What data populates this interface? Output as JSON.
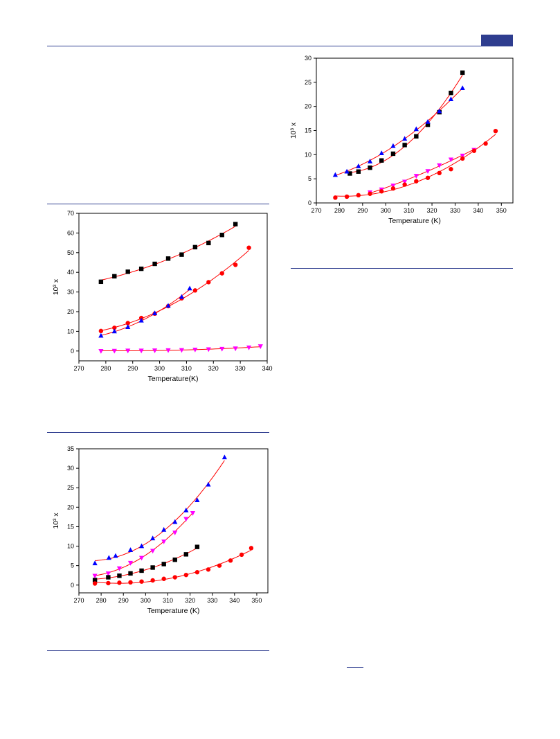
{
  "header": {
    "accent_color": "#2e3d8f"
  },
  "footer": {
    "short_rule_color": "#2e3d8f"
  },
  "colors": {
    "fit_line": "#ff0000",
    "black": "#000000",
    "red": "#ff0000",
    "blue": "#0000ff",
    "magenta": "#ff00ff"
  },
  "chart_data": [
    {
      "type": "scatter",
      "title": "",
      "xlabel": "Temperature(K)",
      "ylabel": "10³ x",
      "xlim": [
        270,
        340
      ],
      "ylim": [
        -5,
        70
      ],
      "xticks": [
        270,
        280,
        290,
        300,
        310,
        320,
        330,
        340
      ],
      "yticks": [
        0,
        10,
        20,
        30,
        40,
        50,
        60,
        70
      ],
      "grid": false,
      "series": [
        {
          "marker": "square",
          "color": "#000000",
          "x": [
            278.2,
            283.2,
            288.2,
            293.2,
            298.2,
            303.2,
            308.2,
            313.2,
            318.2,
            323.2,
            328.2
          ],
          "y": [
            35.2,
            38.0,
            40.3,
            41.8,
            44.3,
            47.0,
            49.0,
            52.8,
            54.9,
            59.0,
            64.5
          ]
        },
        {
          "marker": "circle",
          "color": "#ff0000",
          "x": [
            278.2,
            283.2,
            288.2,
            293.2,
            298.2,
            303.2,
            308.2,
            313.2,
            318.2,
            323.2,
            328.2,
            333.2
          ],
          "y": [
            10.2,
            11.8,
            14.2,
            16.8,
            19.0,
            22.8,
            26.8,
            30.8,
            35.0,
            39.5,
            43.8,
            52.5
          ]
        },
        {
          "marker": "triangle-up",
          "color": "#0000ff",
          "x": [
            278.2,
            283.2,
            288.2,
            293.2,
            298.2,
            303.2,
            308.2,
            311.2
          ],
          "y": [
            7.8,
            10.0,
            12.2,
            15.5,
            19.2,
            23.0,
            27.5,
            31.8
          ]
        },
        {
          "marker": "triangle-down",
          "color": "#ff00ff",
          "x": [
            278.2,
            283.2,
            288.2,
            293.2,
            298.2,
            303.2,
            308.2,
            313.2,
            318.2,
            323.2,
            328.2,
            333.2,
            337.5
          ],
          "y": [
            0.0,
            0.1,
            0.2,
            0.2,
            0.3,
            0.4,
            0.5,
            0.7,
            0.9,
            1.1,
            1.3,
            1.8,
            2.4
          ]
        }
      ]
    },
    {
      "type": "scatter",
      "title": "",
      "xlabel": "Temperature (K)",
      "ylabel": "10³ x",
      "xlim": [
        270,
        355
      ],
      "ylim": [
        -2,
        35
      ],
      "xticks": [
        270,
        280,
        290,
        300,
        310,
        320,
        330,
        340,
        350
      ],
      "yticks": [
        0,
        5,
        10,
        15,
        20,
        25,
        30,
        35
      ],
      "grid": false,
      "series": [
        {
          "marker": "triangle-up",
          "color": "#0000ff",
          "x": [
            277.2,
            283.5,
            286.5,
            293.2,
            298.2,
            303.2,
            308.2,
            313.2,
            318.2,
            323.2,
            328.2,
            335.5
          ],
          "y": [
            5.6,
            7.0,
            7.5,
            9.0,
            10.0,
            12.0,
            14.2,
            16.2,
            19.2,
            21.8,
            25.8,
            32.8
          ]
        },
        {
          "marker": "triangle-down",
          "color": "#ff00ff",
          "x": [
            277.2,
            283.2,
            288.2,
            293.2,
            298.2,
            303.2,
            308.2,
            313.2,
            318.2,
            321.2
          ],
          "y": [
            2.4,
            3.0,
            4.3,
            5.7,
            7.0,
            8.8,
            11.2,
            13.5,
            17.0,
            18.5
          ]
        },
        {
          "marker": "square",
          "color": "#000000",
          "x": [
            277.2,
            283.2,
            288.2,
            293.2,
            298.2,
            303.2,
            308.2,
            313.2,
            318.2,
            323.2
          ],
          "y": [
            1.3,
            2.0,
            2.4,
            3.0,
            3.7,
            4.5,
            5.4,
            6.5,
            7.9,
            9.8
          ]
        },
        {
          "marker": "circle",
          "color": "#ff0000",
          "x": [
            277.2,
            283.2,
            288.2,
            293.2,
            298.2,
            303.2,
            308.2,
            313.2,
            318.2,
            323.2,
            328.2,
            333.2,
            338.2,
            343.2,
            347.5
          ],
          "y": [
            0.4,
            0.5,
            0.6,
            0.7,
            0.9,
            1.2,
            1.6,
            2.0,
            2.6,
            3.3,
            4.0,
            5.0,
            6.3,
            7.8,
            9.5
          ]
        }
      ]
    },
    {
      "type": "scatter",
      "title": "",
      "xlabel": "Temperature (K)",
      "ylabel": "10³ x",
      "xlim": [
        270,
        355
      ],
      "ylim": [
        0,
        30
      ],
      "xticks": [
        270,
        280,
        290,
        300,
        310,
        320,
        330,
        340,
        350
      ],
      "yticks": [
        0,
        5,
        10,
        15,
        20,
        25,
        30
      ],
      "grid": false,
      "series": [
        {
          "marker": "square",
          "color": "#000000",
          "x": [
            284.5,
            288.2,
            293.2,
            298.2,
            303.2,
            308.2,
            313.2,
            318.2,
            323.2,
            328.2,
            333.2
          ],
          "y": [
            6.1,
            6.5,
            7.3,
            8.8,
            10.2,
            12.0,
            13.8,
            16.2,
            18.8,
            22.8,
            27.0
          ]
        },
        {
          "marker": "triangle-up",
          "color": "#0000ff",
          "x": [
            278.2,
            283.2,
            288.2,
            293.2,
            298.2,
            303.2,
            308.2,
            313.2,
            318.2,
            323.2,
            328.2,
            333.2
          ],
          "y": [
            5.8,
            6.5,
            7.6,
            8.6,
            10.3,
            11.8,
            13.3,
            15.3,
            16.8,
            19.0,
            21.5,
            23.8
          ]
        },
        {
          "marker": "triangle-down",
          "color": "#ff00ff",
          "x": [
            293.2,
            298.2,
            303.2,
            308.2,
            313.2,
            318.2,
            323.2,
            328.2,
            333.2,
            338.2
          ],
          "y": [
            2.2,
            2.8,
            3.6,
            4.4,
            5.6,
            6.6,
            7.8,
            9.0,
            9.8,
            11.0
          ]
        },
        {
          "marker": "circle",
          "color": "#ff0000",
          "x": [
            278.2,
            283.2,
            288.2,
            293.2,
            298.2,
            303.2,
            308.2,
            313.2,
            318.2,
            323.2,
            328.2,
            333.2,
            338.2,
            343.2,
            347.5
          ],
          "y": [
            1.1,
            1.3,
            1.6,
            1.9,
            2.4,
            3.0,
            3.8,
            4.5,
            5.2,
            6.2,
            7.0,
            9.2,
            10.8,
            12.3,
            14.9
          ]
        }
      ]
    }
  ]
}
